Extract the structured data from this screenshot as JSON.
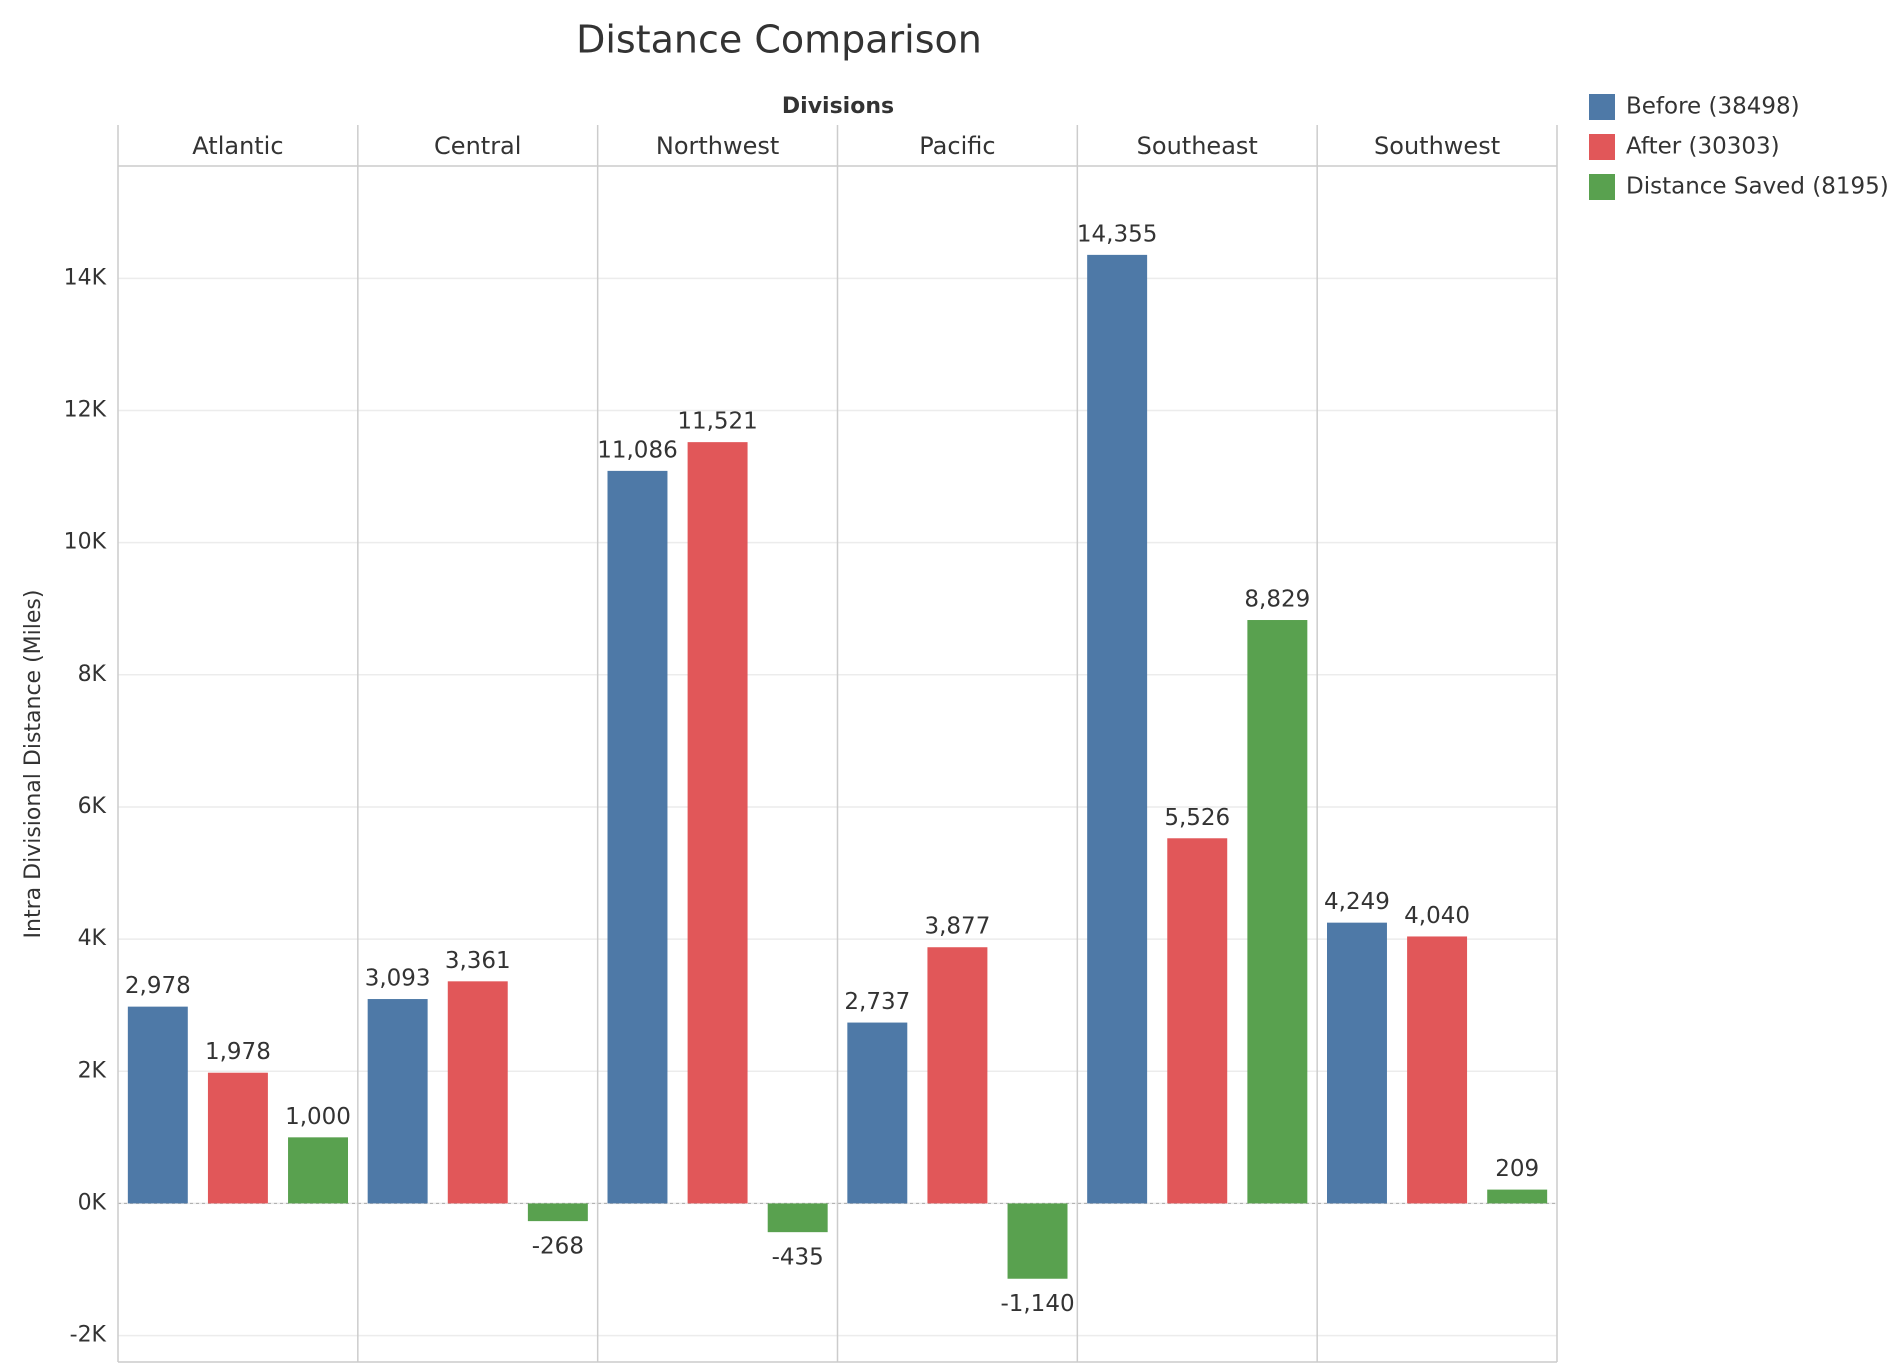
{
  "chart_data": {
    "type": "bar",
    "title": "Distance Comparison",
    "header": "Divisions",
    "ylabel": "Intra Divisional Distance (Miles)",
    "categories": [
      "Atlantic",
      "Central",
      "Northwest",
      "Pacific",
      "Southeast",
      "Southwest"
    ],
    "series": [
      {
        "name": "Before (38498)",
        "color": "#4e79a7",
        "values": [
          2978,
          3093,
          11086,
          2737,
          14355,
          4249
        ],
        "value_labels": [
          "2,978",
          "3,093",
          "11,086",
          "2,737",
          "14,355",
          "4,249"
        ]
      },
      {
        "name": "After (30303)",
        "color": "#e15759",
        "values": [
          1978,
          3361,
          11521,
          3877,
          5526,
          4040
        ],
        "value_labels": [
          "1,978",
          "3,361",
          "11,521",
          "3,877",
          "5,526",
          "4,040"
        ]
      },
      {
        "name": "Distance Saved (8195)",
        "color": "#59a14f",
        "values": [
          1000,
          -268,
          -435,
          -1140,
          8829,
          209
        ],
        "value_labels": [
          "1,000",
          "-268",
          "-435",
          "-1,140",
          "8,829",
          "209"
        ]
      }
    ],
    "ylim": [
      -2400,
      15700
    ],
    "yticks": [
      {
        "value": -2000,
        "label": "-2K"
      },
      {
        "value": 0,
        "label": "0K"
      },
      {
        "value": 2000,
        "label": "2K"
      },
      {
        "value": 4000,
        "label": "4K"
      },
      {
        "value": 6000,
        "label": "6K"
      },
      {
        "value": 8000,
        "label": "8K"
      },
      {
        "value": 10000,
        "label": "10K"
      },
      {
        "value": 12000,
        "label": "12K"
      },
      {
        "value": 14000,
        "label": "14K"
      }
    ],
    "grid": true,
    "legend": "right"
  }
}
